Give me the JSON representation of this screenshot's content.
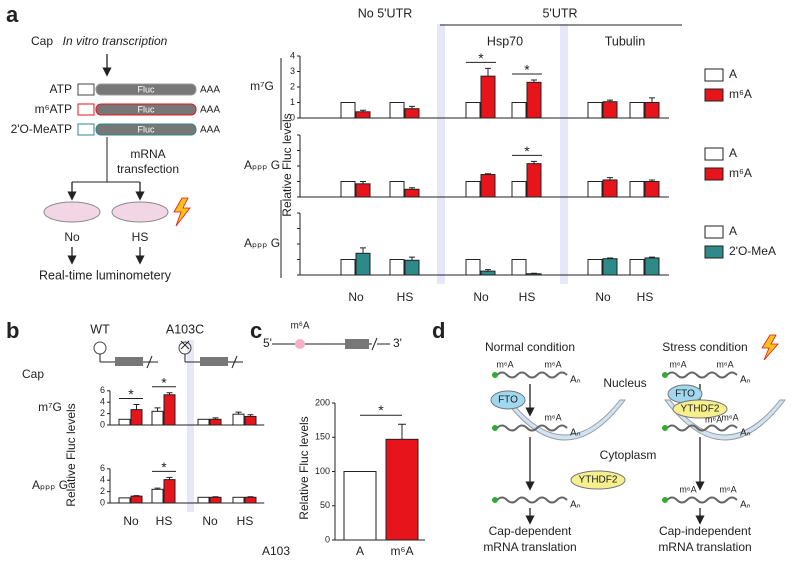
{
  "chart_data": [
    {
      "type": "bar",
      "panel_label": "a",
      "y_label": "Relative Fluc levels",
      "cap_label": "Cap",
      "groups": [
        "No 5'UTR",
        "Hsp70",
        "Tubulin"
      ],
      "group_header": "5'UTR",
      "categories": [
        "No",
        "HS",
        "No",
        "HS",
        "No",
        "HS"
      ],
      "ylim": [
        0,
        4
      ],
      "yticks": [
        0,
        1,
        2,
        3,
        4
      ],
      "rows": [
        {
          "cap": "m⁷G",
          "series": [
            {
              "name": "A",
              "color": "#ffffff",
              "values": [
                1,
                1,
                1,
                1,
                1,
                1
              ]
            },
            {
              "name": "m⁶A",
              "color": "#e8141b",
              "values": [
                0.4,
                0.6,
                2.7,
                2.3,
                1.05,
                1.0
              ],
              "errors": [
                0.1,
                0.15,
                0.5,
                0.15,
                0.1,
                0.3
              ],
              "stars": [
                null,
                null,
                "*",
                "*",
                null,
                null
              ]
            }
          ]
        },
        {
          "cap": "Aₚₚₚ G",
          "series": [
            {
              "name": "A",
              "color": "#ffffff",
              "values": [
                1,
                1,
                1,
                1,
                1,
                1
              ]
            },
            {
              "name": "m⁶A",
              "color": "#e8141b",
              "values": [
                0.85,
                0.5,
                1.45,
                2.15,
                1.1,
                1.0
              ],
              "errors": [
                0.15,
                0.1,
                0.05,
                0.15,
                0.15,
                0.1
              ],
              "stars": [
                null,
                null,
                null,
                "*",
                null,
                null
              ]
            }
          ]
        },
        {
          "cap": "Aₚₚₚ G",
          "series": [
            {
              "name": "A",
              "color": "#ffffff",
              "values": [
                1,
                1,
                1,
                1,
                1,
                1
              ]
            },
            {
              "name": "2'O-MeA",
              "color": "#2e8a88",
              "values": [
                1.4,
                0.95,
                0.25,
                0.08,
                1.05,
                1.1
              ],
              "errors": [
                0.35,
                0.2,
                0.1,
                0.03,
                0.05,
                0.05
              ]
            }
          ]
        }
      ]
    },
    {
      "type": "bar",
      "panel_label": "b",
      "y_label": "Relative Fluc levels",
      "cap_label": "Cap",
      "groups": [
        "WT",
        "A103C"
      ],
      "categories": [
        "No",
        "HS",
        "No",
        "HS"
      ],
      "ylim": [
        0,
        6
      ],
      "yticks": [
        0,
        2,
        4,
        6
      ],
      "rows": [
        {
          "cap": "m⁷G",
          "series": [
            {
              "name": "A",
              "color": "#ffffff",
              "values": [
                1,
                2.4,
                1,
                1.9
              ],
              "errors": [
                null,
                0.6,
                null,
                0.35
              ]
            },
            {
              "name": "m⁶A",
              "color": "#e8141b",
              "values": [
                2.7,
                5.3,
                1.0,
                1.5
              ],
              "errors": [
                0.9,
                0.35,
                0.25,
                0.3
              ],
              "stars": [
                "*",
                "*",
                null,
                null
              ]
            }
          ]
        },
        {
          "cap": "Aₚₚₚ G",
          "series": [
            {
              "name": "A",
              "color": "#ffffff",
              "values": [
                0.9,
                2.4,
                1,
                1
              ],
              "errors": [
                null,
                0.2,
                null,
                null
              ]
            },
            {
              "name": "m⁶A",
              "color": "#e8141b",
              "values": [
                1.2,
                4.1,
                1,
                1
              ],
              "errors": [
                0.1,
                0.4,
                0.1,
                0.1
              ],
              "stars": [
                null,
                "*",
                null,
                null
              ]
            }
          ]
        }
      ]
    },
    {
      "type": "bar",
      "panel_label": "c",
      "y_label": "Relative Fluc levels",
      "category_title": "A103",
      "categories": [
        "A",
        "m⁶A"
      ],
      "values": [
        100,
        147
      ],
      "errors": [
        null,
        22
      ],
      "colors": [
        "#ffffff",
        "#e8141b"
      ],
      "ylim": [
        0,
        200
      ],
      "yticks": [
        0,
        50,
        100,
        150,
        200
      ],
      "star": "*",
      "construct": {
        "five": "5'",
        "mark": "m⁶A",
        "three": "3'"
      }
    }
  ],
  "schematic_a": {
    "title": "In vitro transcription",
    "substrates": [
      "ATP",
      "m⁶ATP",
      "2'O-MeATP"
    ],
    "reporter": [
      "Fluc",
      "Fluc",
      "Fluc"
    ],
    "tails": [
      "AAA",
      "AAA",
      "AAA"
    ],
    "step": [
      "mRNA",
      "transfection"
    ],
    "conditions": [
      "No",
      "HS"
    ],
    "readout": "Real-time luminometery"
  },
  "diagram_d": {
    "panel_label": "d",
    "conditions": [
      "Normal condition",
      "Stress condition"
    ],
    "nucleus": "Nucleus",
    "cytoplasm": "Cytoplasm",
    "readers": [
      "FTO",
      "FTO",
      "YTHDF2",
      "YTHDF2"
    ],
    "marks": [
      "m⁶A",
      "m⁶A",
      "m⁶A",
      "m⁶A",
      "m⁶A",
      "m⁶A",
      "m⁶A",
      "m⁶A",
      "m⁶A"
    ],
    "tails": [
      "Aₙ",
      "Aₙ",
      "Aₙ",
      "Aₙ",
      "Aₙ",
      "Aₙ"
    ],
    "outcomes": [
      [
        "Cap-dependent",
        "mRNA translation"
      ],
      [
        "Cap-independent",
        "mRNA translation"
      ]
    ]
  }
}
